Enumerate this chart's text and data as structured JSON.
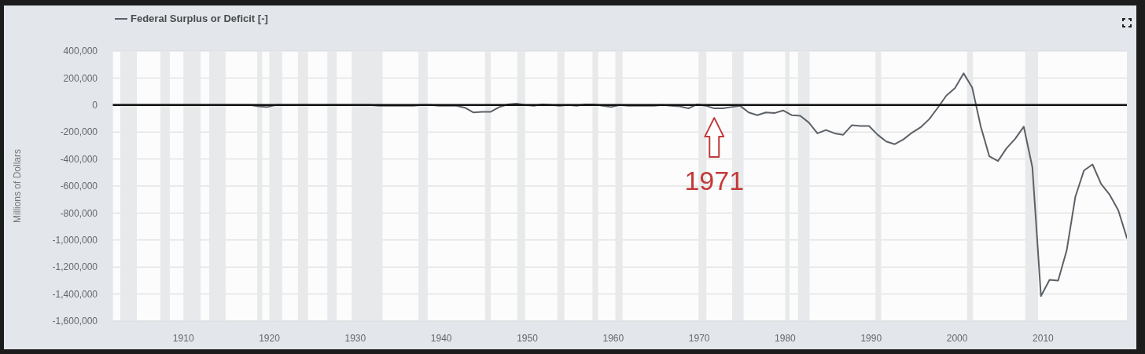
{
  "chart_data": {
    "type": "line",
    "ylabel": "Millions of Dollars",
    "x": [
      "1901-10-01",
      "1902-10-01",
      "1903-10-01",
      "1904-10-01",
      "1905-10-01",
      "1906-10-01",
      "1907-10-01",
      "1908-10-01",
      "1909-10-01",
      "1910-10-01",
      "1911-10-01",
      "1912-10-01",
      "1913-10-01",
      "1914-10-01",
      "1915-10-01",
      "1916-10-01",
      "1917-10-01",
      "1918-10-01",
      "1919-10-01",
      "1920-10-01",
      "1921-10-01",
      "1922-10-01",
      "1923-10-01",
      "1924-10-01",
      "1925-10-01",
      "1926-10-01",
      "1927-10-01",
      "1928-10-01",
      "1929-10-01",
      "1930-10-01",
      "1931-10-01",
      "1932-10-01",
      "1933-10-01",
      "1934-10-01",
      "1935-10-01",
      "1936-10-01",
      "1937-10-01",
      "1938-10-01",
      "1939-10-01",
      "1940-10-01",
      "1941-10-01",
      "1942-10-01",
      "1943-10-01",
      "1944-10-01",
      "1945-10-01",
      "1946-10-01",
      "1947-10-01",
      "1948-10-01",
      "1949-10-01",
      "1950-10-01",
      "1951-10-01",
      "1952-10-01",
      "1953-10-01",
      "1954-10-01",
      "1955-10-01",
      "1956-10-01",
      "1957-10-01",
      "1958-10-01",
      "1959-10-01",
      "1960-10-01",
      "1961-10-01",
      "1962-10-01",
      "1963-10-01",
      "1964-10-01",
      "1965-10-01",
      "1966-10-01",
      "1967-10-01",
      "1968-10-01",
      "1969-10-01",
      "1970-10-01",
      "1971-10-01",
      "1972-10-01",
      "1973-10-01",
      "1974-10-01",
      "1975-10-01",
      "1976-10-01",
      "1977-10-01",
      "1978-10-01",
      "1979-10-01",
      "1980-10-01",
      "1981-10-01",
      "1982-10-01",
      "1983-10-01",
      "1984-10-01",
      "1985-10-01",
      "1986-10-01",
      "1987-10-01",
      "1988-10-01",
      "1989-10-01",
      "1990-10-01",
      "1991-10-01",
      "1992-10-01",
      "1993-10-01",
      "1994-10-01",
      "1995-10-01",
      "1996-10-01",
      "1997-10-01",
      "1998-10-01",
      "1999-10-01",
      "2000-10-01",
      "2001-10-01",
      "2002-10-01",
      "2003-10-01",
      "2004-10-01",
      "2005-10-01",
      "2006-10-01",
      "2007-10-01",
      "2008-10-01",
      "2009-10-01",
      "2010-10-01",
      "2011-10-01",
      "2012-10-01",
      "2013-10-01",
      "2014-10-01",
      "2015-10-01",
      "2016-10-01",
      "2017-10-01",
      "2018-10-01",
      "2019-10-01"
    ],
    "series": [
      {
        "name": "Federal Surplus or Deficit [-]",
        "color": "#5d6167",
        "values": [
          0,
          0,
          0,
          0,
          0,
          0,
          0,
          0,
          0,
          0,
          0,
          0,
          0,
          0,
          0,
          0,
          0,
          -10000,
          -15000,
          0,
          0,
          0,
          0,
          0,
          0,
          0,
          0,
          0,
          0,
          0,
          0,
          -5000,
          -5000,
          -5000,
          -5000,
          -5000,
          0,
          0,
          -5000,
          -5000,
          -5000,
          -20000,
          -55000,
          -50000,
          -50000,
          -15000,
          5000,
          10000,
          0,
          -5000,
          5000,
          0,
          -5000,
          0,
          -5000,
          5000,
          5000,
          -5000,
          -15000,
          0,
          -5000,
          -5000,
          -5000,
          -5000,
          0,
          -5000,
          -10000,
          -25000,
          5000,
          -5000,
          -25000,
          -25000,
          -15000,
          -5000,
          -55000,
          -75000,
          -55000,
          -60000,
          -40000,
          -75000,
          -80000,
          -130000,
          -210000,
          -185000,
          -210000,
          -220000,
          -150000,
          -155000,
          -155000,
          -220000,
          -270000,
          -290000,
          -255000,
          -205000,
          -165000,
          -105000,
          -20000,
          70000,
          125000,
          235000,
          130000,
          -160000,
          -380000,
          -415000,
          -320000,
          -250000,
          -160000,
          -460000,
          -1415000,
          -1295000,
          -1300000,
          -1075000,
          -680000,
          -485000,
          -440000,
          -585000,
          -665000,
          -780000,
          -985000
        ]
      }
    ],
    "xlim": [
      "1901-10-01",
      "2019-10-01"
    ],
    "xticks": [
      "1910",
      "1920",
      "1930",
      "1940",
      "1950",
      "1960",
      "1970",
      "1980",
      "1990",
      "2000",
      "2010"
    ],
    "ylim": [
      -1600000,
      400000
    ],
    "yticks": [
      {
        "value": 400000,
        "label": "400,000"
      },
      {
        "value": 200000,
        "label": "200,000"
      },
      0,
      {
        "value": -200000,
        "label": "-200,000"
      },
      {
        "value": -400000,
        "label": "-400,000"
      },
      {
        "value": -600000,
        "label": "-600,000"
      },
      {
        "value": -800000,
        "label": "-800,000"
      },
      {
        "value": -1000000,
        "label": "-1,000,000"
      },
      {
        "value": -1200000,
        "label": "-1,200,000"
      },
      {
        "value": -1400000,
        "label": "-1,400,000"
      },
      {
        "value": -1600000,
        "label": "-1,600,000"
      }
    ],
    "ref_lines": [
      {
        "axis": "y",
        "value": 0,
        "color": "#111111"
      }
    ],
    "bands": [
      {
        "axis": "x",
        "from": "1902-09",
        "to": "1904-08",
        "color": "#e8e9ea"
      },
      {
        "axis": "x",
        "from": "1907-05",
        "to": "1908-06",
        "color": "#e8e9ea"
      },
      {
        "axis": "x",
        "from": "1910-01",
        "to": "1912-01",
        "color": "#e8e9ea"
      },
      {
        "axis": "x",
        "from": "1913-01",
        "to": "1914-12",
        "color": "#e8e9ea"
      },
      {
        "axis": "x",
        "from": "1918-08",
        "to": "1919-03",
        "color": "#e8e9ea"
      },
      {
        "axis": "x",
        "from": "1920-01",
        "to": "1921-07",
        "color": "#e8e9ea"
      },
      {
        "axis": "x",
        "from": "1923-05",
        "to": "1924-07",
        "color": "#e8e9ea"
      },
      {
        "axis": "x",
        "from": "1926-10",
        "to": "1927-11",
        "color": "#e8e9ea"
      },
      {
        "axis": "x",
        "from": "1929-08",
        "to": "1933-03",
        "color": "#e8e9ea"
      },
      {
        "axis": "x",
        "from": "1937-05",
        "to": "1938-06",
        "color": "#e8e9ea"
      },
      {
        "axis": "x",
        "from": "1945-02",
        "to": "1945-10",
        "color": "#e8e9ea"
      },
      {
        "axis": "x",
        "from": "1948-11",
        "to": "1949-10",
        "color": "#e8e9ea"
      },
      {
        "axis": "x",
        "from": "1953-07",
        "to": "1954-05",
        "color": "#e8e9ea"
      },
      {
        "axis": "x",
        "from": "1957-08",
        "to": "1958-04",
        "color": "#e8e9ea"
      },
      {
        "axis": "x",
        "from": "1960-04",
        "to": "1961-02",
        "color": "#e8e9ea"
      },
      {
        "axis": "x",
        "from": "1969-12",
        "to": "1970-11",
        "color": "#e8e9ea"
      },
      {
        "axis": "x",
        "from": "1973-11",
        "to": "1975-03",
        "color": "#e8e9ea"
      },
      {
        "axis": "x",
        "from": "1980-01",
        "to": "1980-07",
        "color": "#e8e9ea"
      },
      {
        "axis": "x",
        "from": "1981-07",
        "to": "1982-11",
        "color": "#e8e9ea"
      },
      {
        "axis": "x",
        "from": "1990-07",
        "to": "1991-03",
        "color": "#e8e9ea"
      },
      {
        "axis": "x",
        "from": "2001-03",
        "to": "2001-11",
        "color": "#e8e9ea"
      },
      {
        "axis": "x",
        "from": "2007-12",
        "to": "2009-06",
        "color": "#e8e9ea"
      }
    ],
    "annotations": [
      {
        "text": "1971",
        "x": "1971-10-01",
        "y": -25000
      }
    ],
    "grid": "y",
    "legend": "top left"
  }
}
